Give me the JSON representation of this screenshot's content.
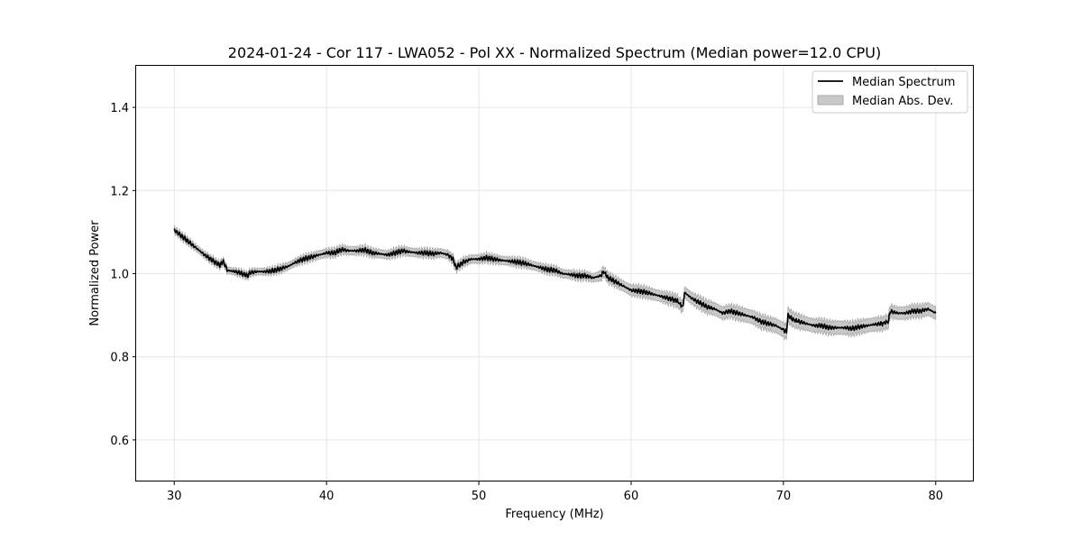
{
  "chart_data": {
    "type": "line",
    "title": "2024-01-24 - Cor 117 - LWA052 - Pol XX - Normalized Spectrum (Median power=12.0 CPU)",
    "xlabel": "Frequency (MHz)",
    "ylabel": "Normalized Power",
    "xlim": [
      27.5,
      82.5
    ],
    "ylim": [
      0.5,
      1.5
    ],
    "xticks": [
      30,
      40,
      50,
      60,
      70,
      80
    ],
    "yticks": [
      0.6,
      0.8,
      1.0,
      1.2,
      1.4
    ],
    "xtick_labels": [
      "30",
      "40",
      "50",
      "60",
      "70",
      "80"
    ],
    "ytick_labels": [
      "0.6",
      "0.8",
      "1.0",
      "1.2",
      "1.4"
    ],
    "grid": true,
    "legend_position": "top-right",
    "legend": [
      {
        "label": "Median Spectrum",
        "kind": "line",
        "color": "#000000"
      },
      {
        "label": "Median Abs. Dev.",
        "kind": "band",
        "color": "#c8c8c8"
      }
    ],
    "series": [
      {
        "name": "Median Spectrum",
        "x": [
          30.0,
          30.5,
          31.0,
          31.5,
          32.0,
          32.5,
          33.0,
          33.2,
          33.5,
          34.0,
          34.5,
          34.8,
          35.0,
          35.5,
          36.0,
          36.5,
          37.0,
          37.5,
          38.0,
          38.5,
          39.0,
          39.5,
          40.0,
          40.5,
          41.0,
          41.5,
          42.0,
          42.5,
          43.0,
          43.5,
          44.0,
          44.5,
          45.0,
          45.5,
          46.0,
          46.5,
          47.0,
          47.5,
          48.0,
          48.3,
          48.5,
          49.0,
          49.5,
          50.0,
          50.5,
          51.0,
          51.5,
          52.0,
          52.5,
          53.0,
          53.5,
          54.0,
          54.5,
          55.0,
          55.5,
          56.0,
          56.5,
          57.0,
          57.5,
          58.0,
          58.2,
          58.5,
          59.0,
          59.5,
          60.0,
          60.5,
          61.0,
          61.5,
          62.0,
          62.5,
          63.0,
          63.4,
          63.5,
          64.0,
          64.5,
          65.0,
          65.5,
          66.0,
          66.5,
          67.0,
          67.5,
          68.0,
          68.5,
          69.0,
          69.5,
          70.0,
          70.2,
          70.3,
          70.6,
          71.0,
          71.5,
          72.0,
          72.5,
          73.0,
          73.5,
          74.0,
          74.5,
          75.0,
          75.5,
          76.0,
          76.5,
          76.9,
          77.0,
          77.5,
          78.0,
          78.5,
          79.0,
          79.5,
          80.0
        ],
        "values": [
          1.105,
          1.09,
          1.075,
          1.06,
          1.045,
          1.032,
          1.02,
          1.03,
          1.008,
          1.005,
          1.0,
          0.995,
          1.003,
          1.005,
          1.005,
          1.007,
          1.012,
          1.018,
          1.028,
          1.035,
          1.04,
          1.045,
          1.05,
          1.05,
          1.058,
          1.055,
          1.055,
          1.057,
          1.05,
          1.048,
          1.045,
          1.05,
          1.055,
          1.052,
          1.05,
          1.05,
          1.048,
          1.05,
          1.045,
          1.035,
          1.015,
          1.028,
          1.035,
          1.035,
          1.038,
          1.035,
          1.032,
          1.03,
          1.028,
          1.025,
          1.02,
          1.015,
          1.01,
          1.008,
          1.0,
          0.998,
          0.995,
          0.995,
          0.99,
          0.995,
          1.005,
          0.99,
          0.98,
          0.97,
          0.96,
          0.958,
          0.955,
          0.95,
          0.945,
          0.94,
          0.935,
          0.92,
          0.955,
          0.94,
          0.93,
          0.92,
          0.915,
          0.905,
          0.91,
          0.905,
          0.9,
          0.895,
          0.885,
          0.88,
          0.875,
          0.865,
          0.86,
          0.9,
          0.89,
          0.885,
          0.88,
          0.875,
          0.875,
          0.87,
          0.87,
          0.87,
          0.868,
          0.872,
          0.875,
          0.878,
          0.88,
          0.885,
          0.91,
          0.905,
          0.905,
          0.91,
          0.91,
          0.915,
          0.905
        ]
      }
    ],
    "mad_halfwidth": [
      0.008,
      0.008,
      0.008,
      0.008,
      0.008,
      0.008,
      0.008,
      0.008,
      0.008,
      0.008,
      0.008,
      0.008,
      0.008,
      0.008,
      0.008,
      0.008,
      0.009,
      0.009,
      0.009,
      0.009,
      0.009,
      0.01,
      0.01,
      0.01,
      0.01,
      0.01,
      0.01,
      0.01,
      0.01,
      0.01,
      0.01,
      0.01,
      0.01,
      0.01,
      0.01,
      0.01,
      0.01,
      0.01,
      0.01,
      0.01,
      0.01,
      0.01,
      0.01,
      0.01,
      0.01,
      0.01,
      0.01,
      0.01,
      0.01,
      0.01,
      0.01,
      0.01,
      0.01,
      0.01,
      0.01,
      0.01,
      0.01,
      0.01,
      0.01,
      0.012,
      0.012,
      0.012,
      0.012,
      0.012,
      0.013,
      0.013,
      0.013,
      0.013,
      0.013,
      0.014,
      0.014,
      0.014,
      0.014,
      0.014,
      0.015,
      0.015,
      0.015,
      0.015,
      0.015,
      0.016,
      0.016,
      0.016,
      0.016,
      0.016,
      0.017,
      0.017,
      0.017,
      0.017,
      0.017,
      0.017,
      0.016,
      0.016,
      0.016,
      0.016,
      0.016,
      0.016,
      0.016,
      0.016,
      0.016,
      0.016,
      0.016,
      0.016,
      0.015,
      0.015,
      0.015,
      0.015,
      0.015,
      0.015,
      0.015
    ]
  },
  "colors": {
    "line": "#000000",
    "band": "#c8c8c8",
    "grid": "#e6e6e6",
    "axis": "#000000"
  }
}
